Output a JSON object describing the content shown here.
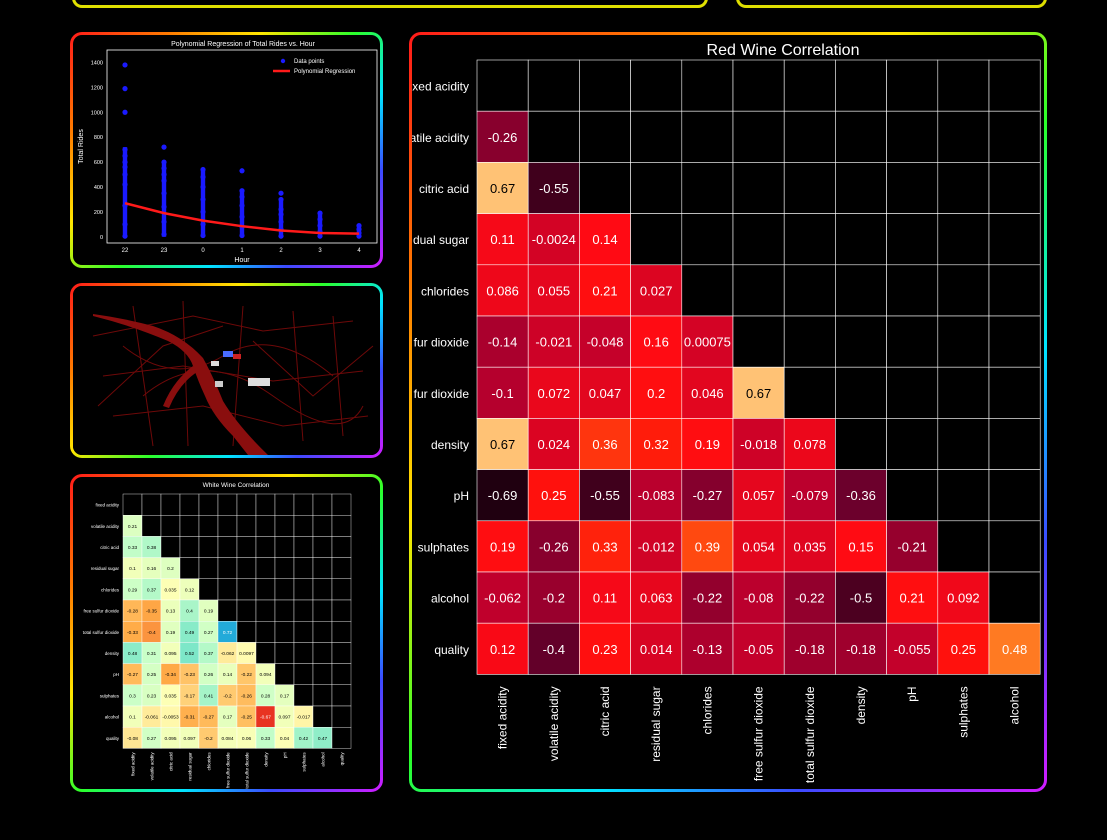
{
  "regression_chart": {
    "chart_data": {
      "type": "scatter",
      "title": "Polynomial Regression of Total Rides vs. Hour",
      "xlabel": "Hour",
      "ylabel": "Total Rides",
      "categories": [
        "22",
        "23",
        "0",
        "1",
        "2",
        "3",
        "4"
      ],
      "ylim": [
        -50,
        1500
      ],
      "yticks": [
        "0",
        "200",
        "400",
        "600",
        "800",
        "1000",
        "1200",
        "1400"
      ],
      "series": [
        {
          "name": "Data points",
          "color": "#1a1aff",
          "points": [
            [
              0,
              5
            ],
            [
              0,
              100
            ],
            [
              0,
              250
            ],
            [
              0,
              420
            ],
            [
              0,
              500
            ],
            [
              0,
              560
            ],
            [
              0,
              600
            ],
            [
              0,
              650
            ],
            [
              0,
              700
            ],
            [
              0,
              1000
            ],
            [
              0,
              1190
            ],
            [
              0,
              1380
            ],
            [
              1,
              20
            ],
            [
              1,
              120
            ],
            [
              1,
              240
            ],
            [
              1,
              350
            ],
            [
              1,
              450
            ],
            [
              1,
              500
            ],
            [
              1,
              550
            ],
            [
              1,
              600
            ],
            [
              1,
              720
            ],
            [
              2,
              10
            ],
            [
              2,
              100
            ],
            [
              2,
              200
            ],
            [
              2,
              300
            ],
            [
              2,
              400
            ],
            [
              2,
              480
            ],
            [
              2,
              540
            ],
            [
              3,
              10
            ],
            [
              3,
              80
            ],
            [
              3,
              160
            ],
            [
              3,
              250
            ],
            [
              3,
              320
            ],
            [
              3,
              370
            ],
            [
              3,
              530
            ],
            [
              4,
              5
            ],
            [
              4,
              60
            ],
            [
              4,
              120
            ],
            [
              4,
              180
            ],
            [
              4,
              220
            ],
            [
              4,
              300
            ],
            [
              4,
              350
            ],
            [
              5,
              5
            ],
            [
              5,
              40
            ],
            [
              5,
              90
            ],
            [
              5,
              140
            ],
            [
              5,
              190
            ],
            [
              6,
              5
            ],
            [
              6,
              30
            ],
            [
              6,
              60
            ],
            [
              6,
              90
            ]
          ]
        },
        {
          "name": "Polynomial Regression",
          "color": "#ff1a1a",
          "line": [
            [
              0,
              270
            ],
            [
              1,
              190
            ],
            [
              2,
              130
            ],
            [
              3,
              85
            ],
            [
              4,
              50
            ],
            [
              5,
              30
            ],
            [
              6,
              25
            ]
          ]
        }
      ]
    }
  },
  "map_panel": {
    "icon": "map-dark-streets"
  },
  "red_wine": {
    "chart_data": {
      "type": "heatmap",
      "title": "Red Wine Correlation",
      "row_labels": [
        "fixed acidity",
        "volatile acidity",
        "citric acid",
        "residual sugar",
        "chlorides",
        "free sulfur dioxide",
        "total sulfur dioxide",
        "density",
        "pH",
        "sulphates",
        "alcohol",
        "quality"
      ],
      "row_labels_visible": [
        "xed acidity",
        "atile acidity",
        "citric acid",
        "dual sugar",
        "chlorides",
        "fur dioxide",
        "fur dioxide",
        "density",
        "pH",
        "sulphates",
        "alcohol",
        "quality"
      ],
      "col_labels": [
        "fixed acidity",
        "volatile acidity",
        "citric acid",
        "residual sugar",
        "chlorides",
        "free sulfur dioxide",
        "total sulfur dioxide",
        "density",
        "pH",
        "sulphates",
        "alcohol"
      ],
      "rows": [
        [],
        [
          "-0.26"
        ],
        [
          "0.67",
          "-0.55"
        ],
        [
          "0.11",
          "-0.0024",
          "0.14"
        ],
        [
          "0.086",
          "0.055",
          "0.21",
          "0.027"
        ],
        [
          "-0.14",
          "-0.021",
          "-0.048",
          "0.16",
          "0.00075"
        ],
        [
          "-0.1",
          "0.072",
          "0.047",
          "0.2",
          "0.046",
          "0.67"
        ],
        [
          "0.67",
          "0.024",
          "0.36",
          "0.32",
          "0.19",
          "-0.018",
          "0.078"
        ],
        [
          "-0.69",
          "0.25",
          "-0.55",
          "-0.083",
          "-0.27",
          "0.057",
          "-0.079",
          "-0.36"
        ],
        [
          "0.19",
          "-0.26",
          "0.33",
          "-0.012",
          "0.39",
          "0.054",
          "0.035",
          "0.15",
          "-0.21"
        ],
        [
          "-0.062",
          "-0.2",
          "0.11",
          "0.063",
          "-0.22",
          "-0.08",
          "-0.22",
          "-0.5",
          "0.21",
          "0.092"
        ],
        [
          "0.12",
          "-0.4",
          "0.23",
          "0.014",
          "-0.13",
          "-0.05",
          "-0.18",
          "-0.18",
          "-0.055",
          "0.25",
          "0.48"
        ]
      ]
    }
  },
  "white_wine": {
    "chart_data": {
      "type": "heatmap",
      "title": "White Wine Correlation",
      "row_labels": [
        "fixed acidity",
        "volatile acidity",
        "citric acid",
        "residual sugar",
        "chlorides",
        "free sulfur dioxide",
        "total sulfur dioxide",
        "density",
        "pH",
        "sulphates",
        "alcohol",
        "quality"
      ],
      "col_labels": [
        "fixed acidity",
        "volatile acidity",
        "citric acid",
        "residual sugar",
        "chlorides",
        "free sulfur dioxide",
        "total sulfur dioxide",
        "density",
        "pH",
        "sulphates",
        "alcohol",
        "quality"
      ],
      "rows": [
        [],
        [
          "0.21"
        ],
        [
          "0.33",
          "0.38"
        ],
        [
          "0.1",
          "0.16",
          "0.2"
        ],
        [
          "0.29",
          "0.37",
          "0.035",
          "0.12"
        ],
        [
          "-0.28",
          "-0.35",
          "0.13",
          "0.4",
          "0.19"
        ],
        [
          "-0.33",
          "-0.4",
          "0.19",
          "0.49",
          "0.27",
          "0.72"
        ],
        [
          "0.48",
          "0.31",
          "0.095",
          "0.52",
          "0.37",
          "-0.062",
          "0.0097"
        ],
        [
          "-0.27",
          "0.25",
          "-0.34",
          "-0.23",
          "0.26",
          "0.14",
          "-0.22",
          "0.094"
        ],
        [
          "0.3",
          "0.23",
          "0.035",
          "-0.17",
          "0.41",
          "-0.2",
          "-0.26",
          "0.28",
          "0.17"
        ],
        [
          "0.1",
          "-0.061",
          "-0.0053",
          "-0.31",
          "-0.27",
          "0.17",
          "-0.25",
          "-0.67",
          "0.097",
          "-0.017"
        ],
        [
          "-0.08",
          "0.27",
          "0.095",
          "0.097",
          "-0.2",
          "0.084",
          "0.06",
          "0.33",
          "0.04",
          "0.42",
          "0.47"
        ]
      ]
    }
  }
}
